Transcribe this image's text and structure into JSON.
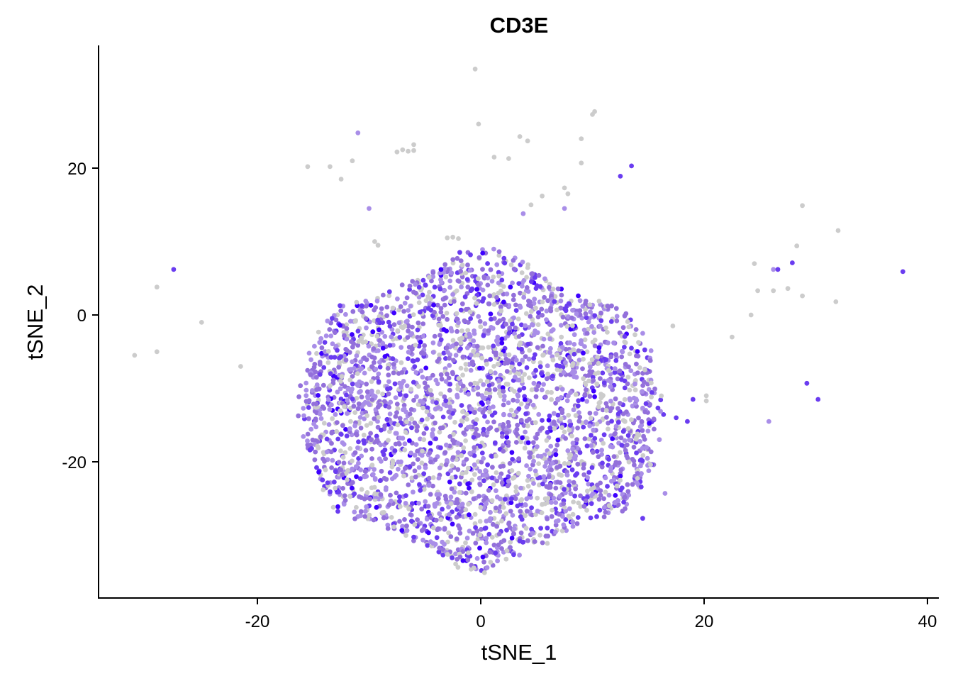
{
  "chart_data": {
    "type": "scatter",
    "title": "CD3E",
    "xlabel": "tSNE_1",
    "ylabel": "tSNE_2",
    "xlim": [
      -34,
      41
    ],
    "ylim": [
      -39,
      37
    ],
    "x_ticks": [
      -20,
      0,
      20,
      40
    ],
    "y_ticks": [
      20,
      0,
      -20
    ],
    "x_tick_labels": [
      "-20",
      "0",
      "20",
      "40"
    ],
    "y_tick_labels": [
      "20",
      "0",
      "-20"
    ],
    "grid": false,
    "legend": "none",
    "colors": {
      "low": "#cccccc",
      "mid": "#9370db",
      "high": "#3d00ff"
    },
    "cluster": {
      "description_free": true,
      "center": [
        0,
        -13
      ],
      "x_range": [
        -17,
        17
      ],
      "y_range": [
        -36,
        9
      ],
      "point_count": 3200
    },
    "outliers": [
      {
        "x": -31,
        "y": -5.5,
        "level": 0
      },
      {
        "x": -29,
        "y": -5,
        "level": 0
      },
      {
        "x": -29,
        "y": 3.8,
        "level": 0
      },
      {
        "x": -27.5,
        "y": 6.2,
        "level": 2
      },
      {
        "x": -25,
        "y": -1,
        "level": 0
      },
      {
        "x": -21.5,
        "y": -7,
        "level": 0
      },
      {
        "x": -15.5,
        "y": 20.2,
        "level": 0
      },
      {
        "x": -13.5,
        "y": 20.2,
        "level": 0
      },
      {
        "x": -12.5,
        "y": 18.5,
        "level": 0
      },
      {
        "x": -11.5,
        "y": 21,
        "level": 0
      },
      {
        "x": -11,
        "y": 24.8,
        "level": 1
      },
      {
        "x": -10,
        "y": 14.5,
        "level": 1
      },
      {
        "x": -9.5,
        "y": 10,
        "level": 0
      },
      {
        "x": -9.2,
        "y": 9.5,
        "level": 0
      },
      {
        "x": -7.5,
        "y": 22.2,
        "level": 0
      },
      {
        "x": -7,
        "y": 22.5,
        "level": 0
      },
      {
        "x": -6.5,
        "y": 22.3,
        "level": 0
      },
      {
        "x": -6,
        "y": 23.2,
        "level": 0
      },
      {
        "x": -6,
        "y": 22.4,
        "level": 0
      },
      {
        "x": -3,
        "y": 10.5,
        "level": 0
      },
      {
        "x": -2.5,
        "y": 10.6,
        "level": 0
      },
      {
        "x": -2,
        "y": 10.4,
        "level": 0
      },
      {
        "x": -0.5,
        "y": 33.5,
        "level": 0
      },
      {
        "x": -0.2,
        "y": 26,
        "level": 0
      },
      {
        "x": 1.2,
        "y": 21.5,
        "level": 0
      },
      {
        "x": 2.5,
        "y": 21.3,
        "level": 0
      },
      {
        "x": 3.5,
        "y": 24.3,
        "level": 0
      },
      {
        "x": 4.2,
        "y": 23.7,
        "level": 0
      },
      {
        "x": 4.5,
        "y": 15,
        "level": 0
      },
      {
        "x": 5.5,
        "y": 16.2,
        "level": 0
      },
      {
        "x": 3.8,
        "y": 13.8,
        "level": 1
      },
      {
        "x": 7.5,
        "y": 17.3,
        "level": 0
      },
      {
        "x": 7.8,
        "y": 16.5,
        "level": 0
      },
      {
        "x": 7.5,
        "y": 14.5,
        "level": 1
      },
      {
        "x": 9,
        "y": 24,
        "level": 0
      },
      {
        "x": 9,
        "y": 20.7,
        "level": 0
      },
      {
        "x": 10,
        "y": 27.3,
        "level": 0
      },
      {
        "x": 10.2,
        "y": 27.7,
        "level": 0
      },
      {
        "x": 12.5,
        "y": 18.9,
        "level": 2
      },
      {
        "x": 13.5,
        "y": 20.3,
        "level": 2
      },
      {
        "x": 14.5,
        "y": -2.5,
        "level": 1
      },
      {
        "x": 17.2,
        "y": -1.5,
        "level": 0
      },
      {
        "x": 20.2,
        "y": -11,
        "level": 0
      },
      {
        "x": 20.2,
        "y": -11.7,
        "level": 0
      },
      {
        "x": 22.5,
        "y": -3,
        "level": 0
      },
      {
        "x": 24.2,
        "y": 0,
        "level": 0
      },
      {
        "x": 24.5,
        "y": 7,
        "level": 0
      },
      {
        "x": 24.8,
        "y": 3.3,
        "level": 0
      },
      {
        "x": 26.2,
        "y": 6.2,
        "level": 1
      },
      {
        "x": 26.6,
        "y": 6.2,
        "level": 2
      },
      {
        "x": 26.2,
        "y": 3.3,
        "level": 0
      },
      {
        "x": 25.8,
        "y": -14.5,
        "level": 1
      },
      {
        "x": 27.5,
        "y": 3.6,
        "level": 0
      },
      {
        "x": 27.9,
        "y": 7.1,
        "level": 2
      },
      {
        "x": 28.3,
        "y": 9.4,
        "level": 0
      },
      {
        "x": 28.8,
        "y": 14.9,
        "level": 0
      },
      {
        "x": 28.8,
        "y": 2.6,
        "level": 0
      },
      {
        "x": 29.2,
        "y": -9.3,
        "level": 2
      },
      {
        "x": 30.2,
        "y": -11.5,
        "level": 2
      },
      {
        "x": 31.8,
        "y": 1.8,
        "level": 0
      },
      {
        "x": 32,
        "y": 11.5,
        "level": 0
      },
      {
        "x": 37.8,
        "y": 5.9,
        "level": 2
      },
      {
        "x": 14.5,
        "y": -27.7,
        "level": 2
      },
      {
        "x": 12.8,
        "y": -25.5,
        "level": 2
      },
      {
        "x": 16.5,
        "y": -24.3,
        "level": 1
      },
      {
        "x": 17.5,
        "y": -14,
        "level": 2
      },
      {
        "x": 18.5,
        "y": -14.5,
        "level": 2
      },
      {
        "x": 19,
        "y": -11.5,
        "level": 2
      }
    ]
  }
}
